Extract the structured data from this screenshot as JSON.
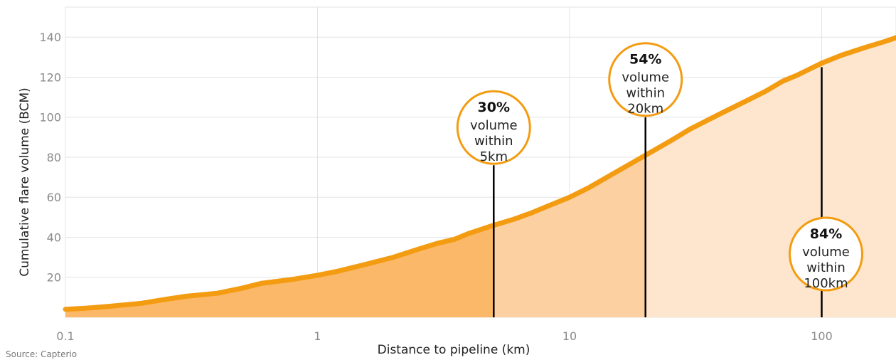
{
  "chart_data": {
    "type": "area",
    "title": "",
    "xlabel": "Distance to pipeline (km)",
    "ylabel": "Cumulative flare volume (BCM)",
    "xscale": "log",
    "xlim": [
      0.1,
      200
    ],
    "ylim": [
      0,
      155
    ],
    "grid": true,
    "x_ticks": [
      {
        "value": 0.1,
        "label": "0.1"
      },
      {
        "value": 1,
        "label": "1"
      },
      {
        "value": 10,
        "label": "10"
      },
      {
        "value": 100,
        "label": "100"
      }
    ],
    "y_ticks": [
      {
        "value": 20,
        "label": "20"
      },
      {
        "value": 40,
        "label": "40"
      },
      {
        "value": 60,
        "label": "60"
      },
      {
        "value": 80,
        "label": "80"
      },
      {
        "value": 100,
        "label": "100"
      },
      {
        "value": 120,
        "label": "120"
      },
      {
        "value": 140,
        "label": "140"
      }
    ],
    "series": [
      {
        "color": "#f39c12",
        "x": [
          0.1,
          0.12,
          0.15,
          0.2,
          0.25,
          0.3,
          0.4,
          0.5,
          0.6,
          0.8,
          1,
          1.2,
          1.5,
          2,
          2.5,
          3,
          3.5,
          4,
          5,
          6,
          7,
          8,
          10,
          12,
          15,
          20,
          25,
          30,
          40,
          50,
          60,
          70,
          80,
          100,
          120,
          150,
          180,
          200
        ],
        "y": [
          4,
          4.5,
          5.5,
          7,
          9,
          10.5,
          12,
          14.5,
          17,
          19,
          21,
          23,
          26,
          30,
          34,
          37,
          39,
          42,
          46,
          49,
          52,
          55,
          60,
          65,
          72,
          81,
          88,
          94,
          102,
          108,
          113,
          118,
          121,
          127,
          131,
          135,
          138,
          140
        ]
      }
    ],
    "shading": [
      {
        "from": 0.1,
        "to": 5,
        "color": "#fbb868"
      },
      {
        "from": 5,
        "to": 20,
        "color": "#fcd0a0"
      },
      {
        "from": 20,
        "to": 200,
        "color": "#fde6cd"
      }
    ],
    "annotations": [
      {
        "x": 5,
        "y_top": 76,
        "percent": "30%",
        "lines": [
          "volume",
          "within",
          "5km"
        ]
      },
      {
        "x": 20,
        "y_top": 100,
        "percent": "54%",
        "lines": [
          "volume",
          "within",
          "20km"
        ]
      },
      {
        "x": 100,
        "y_top": 125,
        "percent": "84%",
        "lines": [
          "volume",
          "within",
          "100km"
        ]
      }
    ]
  },
  "source": "Source: Capterio"
}
